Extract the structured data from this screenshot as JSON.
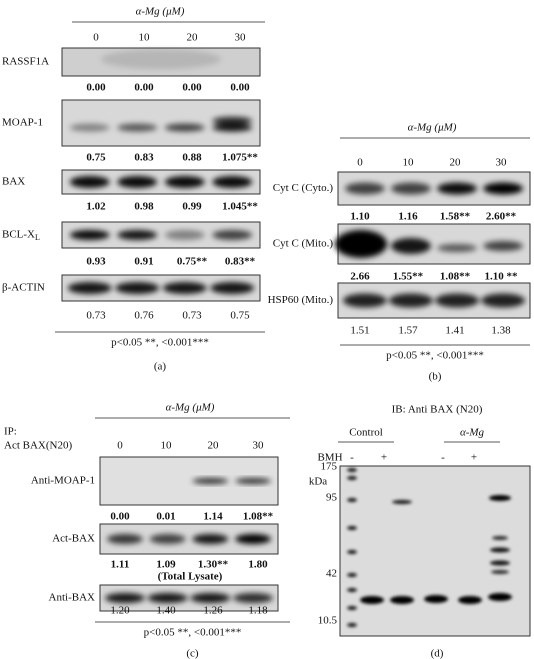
{
  "panels": {
    "a": {
      "treatment": "α-Mg (μM)",
      "doses": [
        "0",
        "10",
        "20",
        "30"
      ],
      "rows": [
        {
          "label": "RASSF1A",
          "values": [
            "0.00",
            "0.00",
            "0.00",
            "0.00"
          ]
        },
        {
          "label": "MOAP-1",
          "values": [
            "0.75",
            "0.83",
            "0.88",
            "1.075**"
          ]
        },
        {
          "label": "BAX",
          "values": [
            "1.02",
            "0.98",
            "0.99",
            "1.045**"
          ]
        },
        {
          "label": "BCL-X",
          "label_sub": "L",
          "values": [
            "0.93",
            "0.91",
            "0.75**",
            "0.83**"
          ]
        },
        {
          "label": "β-ACTIN",
          "values": [
            "0.73",
            "0.76",
            "0.73",
            "0.75"
          ]
        }
      ],
      "footnote": "p<0.05 **, <0.001***",
      "caption": "(a)"
    },
    "b": {
      "treatment": "α-Mg (μM)",
      "doses": [
        "0",
        "10",
        "20",
        "30"
      ],
      "rows": [
        {
          "label": "Cyt C (Cyto.)",
          "values": [
            "1.10",
            "1.16",
            "1.58**",
            "2.60**"
          ]
        },
        {
          "label": "Cyt C (Mito.)",
          "values": [
            "2.66",
            "1.55**",
            "1.08**",
            "1.10 **"
          ]
        },
        {
          "label": "HSP60 (Mito.)",
          "values": [
            "1.51",
            "1.57",
            "1.41",
            "1.38"
          ]
        }
      ],
      "footnote": "p<0.05 **, <0.001***",
      "caption": "(b)"
    },
    "c": {
      "treatment": "α-Mg (μM)",
      "ip": "IP:",
      "ip_antibody": "Act BAX(N20)",
      "doses": [
        "0",
        "10",
        "20",
        "30"
      ],
      "rows": [
        {
          "label": "Anti-MOAP-1",
          "values": [
            "0.00",
            "0.01",
            "1.14",
            "1.08**"
          ]
        },
        {
          "label": "Act-BAX",
          "values": [
            "1.11",
            "1.09",
            "1.30**",
            "1.80"
          ]
        },
        {
          "label": "Anti-BAX",
          "values": [
            "1.20",
            "1.40",
            "1.26",
            "1.18"
          ]
        }
      ],
      "section": "(Total Lysate)",
      "footnote": "p<0.05 **, <0.001***",
      "caption": "(c)"
    },
    "d": {
      "title": "IB: Anti BAX (N20)",
      "groups": [
        "Control",
        "α-Mg"
      ],
      "reagent": "BMH",
      "signs": [
        "-",
        "+",
        "-",
        "+"
      ],
      "unit": "kDa",
      "markers": [
        "175",
        "95",
        "42",
        "10.5"
      ],
      "caption": "(d)"
    }
  }
}
